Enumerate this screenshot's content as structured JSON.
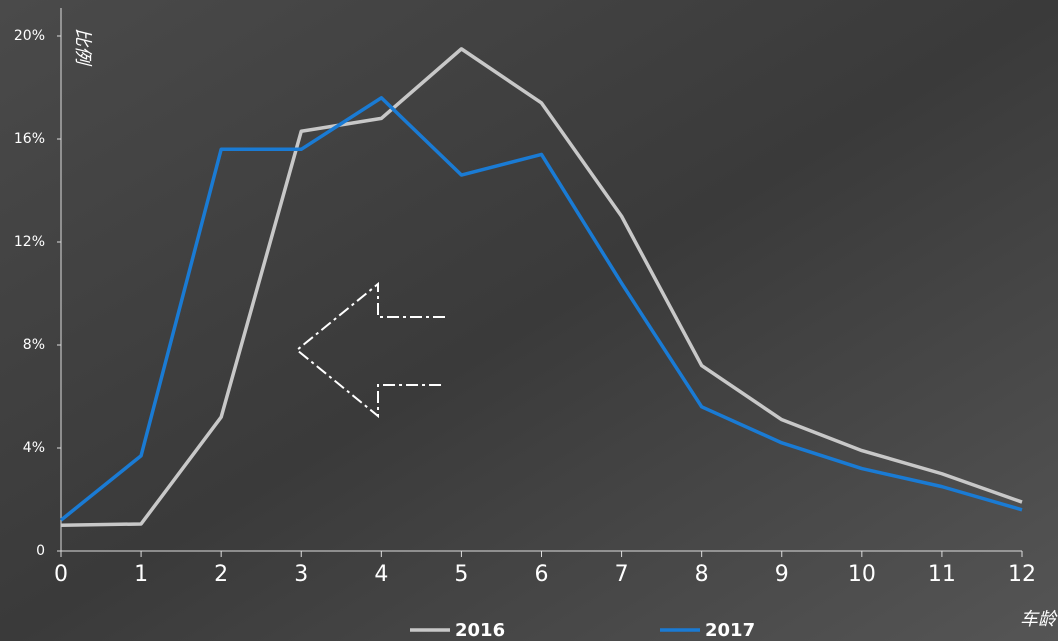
{
  "chart_data": {
    "type": "line",
    "y_label": "比例",
    "x_label": "车龄",
    "x": [
      0,
      1,
      2,
      3,
      4,
      5,
      6,
      7,
      8,
      9,
      10,
      11,
      12
    ],
    "series": [
      {
        "name": "2016",
        "color": "#c8c8c8",
        "values": [
          1.0,
          1.05,
          5.2,
          16.3,
          16.8,
          19.5,
          17.4,
          13.0,
          7.2,
          5.1,
          3.9,
          3.0,
          1.9
        ]
      },
      {
        "name": "2017",
        "color": "#1a7bd4",
        "values": [
          1.2,
          3.7,
          15.6,
          15.6,
          17.6,
          14.6,
          15.4,
          10.4,
          5.6,
          4.2,
          3.2,
          2.5,
          1.6
        ]
      }
    ],
    "xlim": [
      0,
      12
    ],
    "xticks": [
      0,
      1,
      2,
      3,
      4,
      5,
      6,
      7,
      8,
      9,
      10,
      11,
      12
    ],
    "ylim": [
      0,
      20
    ],
    "yticks": [
      0,
      {
        "value": 4,
        "label": "4%"
      },
      {
        "value": 8,
        "label": "8%"
      },
      {
        "value": 12,
        "label": "12%"
      },
      {
        "value": 16,
        "label": "16%"
      },
      {
        "value": 20,
        "label": "20%"
      }
    ]
  }
}
